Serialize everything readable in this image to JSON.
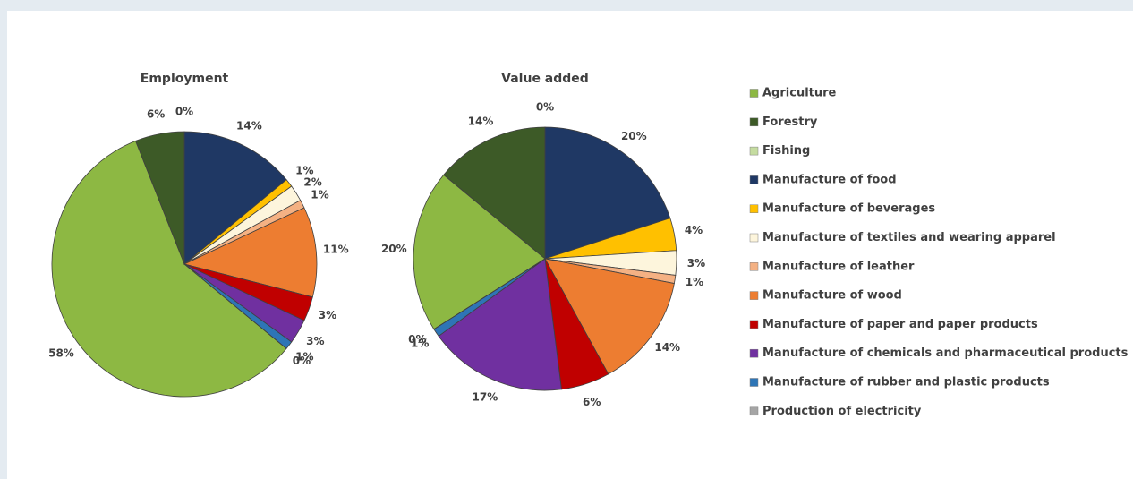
{
  "chart_data": [
    {
      "type": "pie",
      "title": "Employment",
      "values": [
        58,
        6,
        0,
        14,
        1,
        2,
        1,
        11,
        3,
        3,
        1,
        0
      ]
    },
    {
      "type": "pie",
      "title": "Value added",
      "values": [
        20,
        14,
        0,
        20,
        4,
        3,
        1,
        14,
        6,
        17,
        1,
        0
      ]
    }
  ],
  "legend": {
    "categories": [
      "Agriculture",
      "Forestry",
      "Fishing",
      "Manufacture of food",
      "Manufacture of beverages",
      "Manufacture of textiles and wearing apparel",
      "Manufacture of leather",
      "Manufacture of wood",
      "Manufacture of paper and paper products",
      "Manufacture of chemicals and pharmaceutical  products",
      "Manufacture of rubber and plastic products",
      "Production of electricity"
    ],
    "colors": [
      "#8db843",
      "#3d5a27",
      "#c5dca0",
      "#1f3864",
      "#ffc000",
      "#fdf5dc",
      "#f4b183",
      "#ed7d31",
      "#c00000",
      "#7030a0",
      "#2e75b6",
      "#a5a5a5"
    ]
  }
}
